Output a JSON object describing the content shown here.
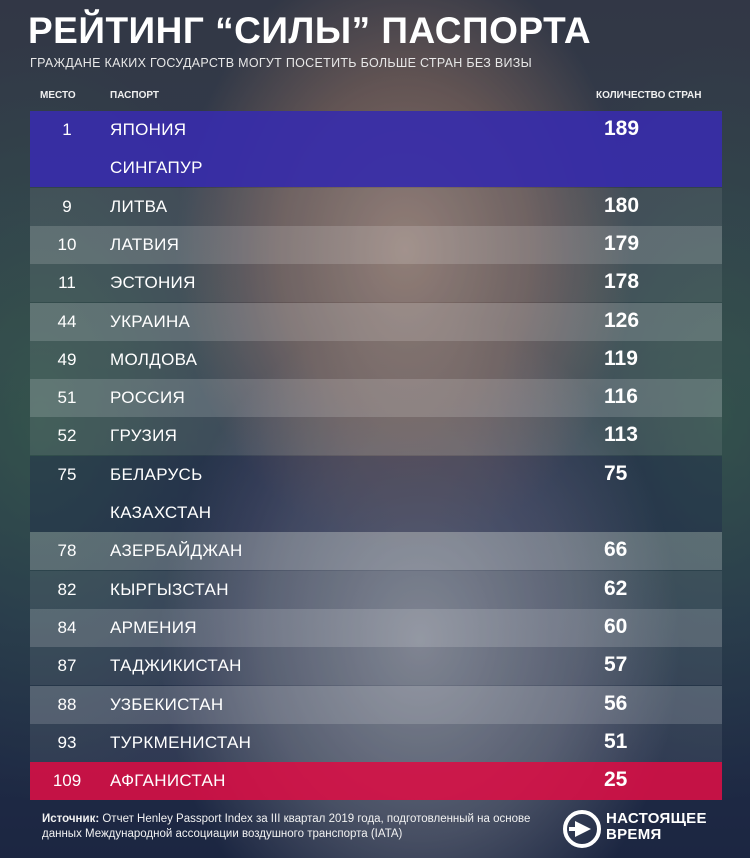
{
  "header": {
    "title": "РЕЙТИНГ “СИЛЫ” ПАСПОРТА",
    "subtitle": "ГРАЖДАНЕ КАКИХ ГОСУДАРСТВ МОГУТ ПОСЕТИТЬ БОЛЬШЕ СТРАН БЕЗ ВИЗЫ"
  },
  "columns": {
    "place": "МЕСТО",
    "passport": "ПАСПОРТ",
    "count": "КОЛИЧЕСТВО СТРАН"
  },
  "chart_data": {
    "type": "table",
    "title": "РЕЙТИНГ “СИЛЫ” ПАСПОРТА",
    "subtitle": "ГРАЖДАНЕ КАКИХ ГОСУДАРСТВ МОГУТ ПОСЕТИТЬ БОЛЬШЕ СТРАН БЕЗ ВИЗЫ",
    "columns": [
      "МЕСТО",
      "ПАСПОРТ",
      "КОЛИЧЕСТВО СТРАН"
    ],
    "rows": [
      {
        "rank": "1",
        "countries": [
          "ЯПОНИЯ",
          "СИНГАПУР"
        ],
        "count": "189"
      },
      {
        "rank": "9",
        "countries": [
          "ЛИТВА"
        ],
        "count": "180"
      },
      {
        "rank": "10",
        "countries": [
          "ЛАТВИЯ"
        ],
        "count": "179"
      },
      {
        "rank": "11",
        "countries": [
          "ЭСТОНИЯ"
        ],
        "count": "178"
      },
      {
        "rank": "44",
        "countries": [
          "УКРАИНА"
        ],
        "count": "126"
      },
      {
        "rank": "49",
        "countries": [
          "МОЛДОВА"
        ],
        "count": "119"
      },
      {
        "rank": "51",
        "countries": [
          "РОССИЯ"
        ],
        "count": "116"
      },
      {
        "rank": "52",
        "countries": [
          "ГРУЗИЯ"
        ],
        "count": "113"
      },
      {
        "rank": "75",
        "countries": [
          "БЕЛАРУСЬ",
          "КАЗАХСТАН"
        ],
        "count": "75"
      },
      {
        "rank": "78",
        "countries": [
          "АЗЕРБАЙДЖАН"
        ],
        "count": "66"
      },
      {
        "rank": "82",
        "countries": [
          "КЫРГЫЗСТАН"
        ],
        "count": "62"
      },
      {
        "rank": "84",
        "countries": [
          "АРМЕНИЯ"
        ],
        "count": "60"
      },
      {
        "rank": "87",
        "countries": [
          "ТАДЖИКИСТАН"
        ],
        "count": "57"
      },
      {
        "rank": "88",
        "countries": [
          "УЗБЕКИСТАН"
        ],
        "count": "56"
      },
      {
        "rank": "93",
        "countries": [
          "ТУРКМЕНИСТАН"
        ],
        "count": "51"
      },
      {
        "rank": "109",
        "countries": [
          "АФГАНИСТАН"
        ],
        "count": "25"
      }
    ]
  },
  "colors": {
    "top_row": "#372daa",
    "last_row": "#dc0f46",
    "text": "#ffffff"
  },
  "footer": {
    "source_label": "Источник:",
    "source_text": " Отчет Henley Passport Index за III квартал 2019 года, подготовленный на основе данных Международной ассоциации воздушного транспорта (IATA)",
    "logo_line1": "НАСТОЯЩЕЕ",
    "logo_line2": "ВРЕМЯ",
    "logo_icon": "play-arrow-icon"
  }
}
